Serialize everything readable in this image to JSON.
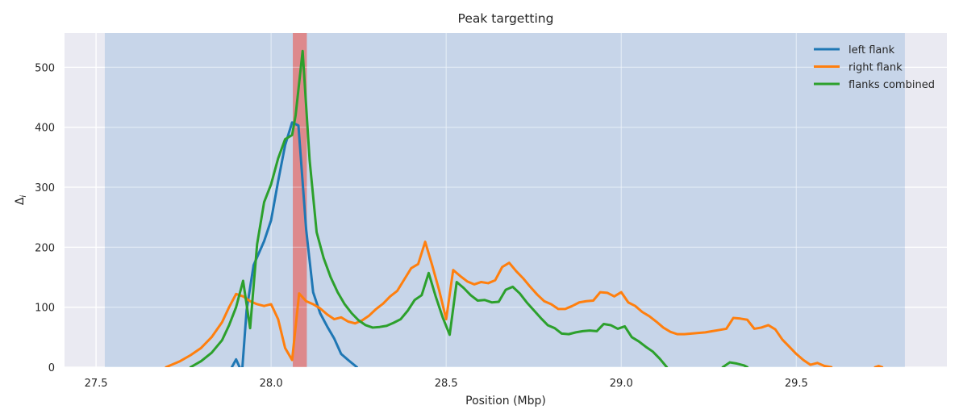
{
  "chart_data": {
    "type": "line",
    "title": "Peak targetting",
    "xlabel": "Position (Mbp)",
    "ylabel": "Δ",
    "ylabel_sub": "i",
    "xlim": [
      27.41,
      29.93
    ],
    "ylim": [
      0,
      557
    ],
    "x_ticks": [
      27.5,
      28.0,
      28.5,
      29.0,
      29.5
    ],
    "x_tick_labels": [
      "27.5",
      "28.0",
      "28.5",
      "29.0",
      "29.5"
    ],
    "y_ticks": [
      0,
      100,
      200,
      300,
      400,
      500
    ],
    "y_tick_labels": [
      "0",
      "100",
      "200",
      "300",
      "400",
      "500"
    ],
    "grid": true,
    "legend_position": "top-right",
    "colors": {
      "background": "#eaeaf2",
      "grid": "#ffffff",
      "blue_span": "#a9c3e2",
      "red_span": "#e07b7b",
      "left_flank": "#1f77b4",
      "right_flank": "#ff7f0e",
      "flanks_combined": "#2ca02c"
    },
    "spans": [
      {
        "name": "search-region",
        "x0": 27.525,
        "x1": 29.81,
        "color_key": "blue_span",
        "opacity": 0.55
      },
      {
        "name": "target-peak",
        "x0": 28.062,
        "x1": 28.102,
        "color_key": "red_span",
        "opacity": 0.85
      }
    ],
    "series": [
      {
        "name": "left flank",
        "color_key": "left_flank",
        "segments": [
          [
            [
              27.888,
              0
            ],
            [
              27.9,
              13
            ],
            [
              27.91,
              0
            ]
          ],
          [
            [
              27.918,
              0
            ],
            [
              27.93,
              95
            ],
            [
              27.95,
              170
            ],
            [
              27.98,
              210
            ],
            [
              28.0,
              245
            ],
            [
              28.02,
              310
            ],
            [
              28.04,
              370
            ],
            [
              28.06,
              408
            ],
            [
              28.078,
              403
            ],
            [
              28.1,
              230
            ],
            [
              28.12,
              125
            ],
            [
              28.14,
              90
            ],
            [
              28.16,
              68
            ],
            [
              28.18,
              48
            ],
            [
              28.2,
              22
            ],
            [
              28.22,
              12
            ],
            [
              28.245,
              0
            ]
          ]
        ]
      },
      {
        "name": "right flank",
        "color_key": "right_flank",
        "segments": [
          [
            [
              27.7,
              0
            ],
            [
              27.74,
              10
            ],
            [
              27.77,
              20
            ],
            [
              27.8,
              32
            ],
            [
              27.83,
              50
            ],
            [
              27.86,
              75
            ],
            [
              27.88,
              100
            ],
            [
              27.9,
              122
            ],
            [
              27.92,
              118
            ],
            [
              27.94,
              110
            ],
            [
              27.96,
              105
            ],
            [
              27.98,
              102
            ],
            [
              28.0,
              105
            ],
            [
              28.02,
              80
            ],
            [
              28.04,
              32
            ],
            [
              28.06,
              12
            ],
            [
              28.08,
              123
            ],
            [
              28.1,
              110
            ],
            [
              28.12,
              105
            ],
            [
              28.14,
              98
            ],
            [
              28.16,
              88
            ],
            [
              28.18,
              80
            ],
            [
              28.2,
              83
            ],
            [
              28.22,
              76
            ],
            [
              28.24,
              73
            ],
            [
              28.26,
              78
            ],
            [
              28.28,
              86
            ],
            [
              28.3,
              97
            ],
            [
              28.32,
              106
            ],
            [
              28.34,
              118
            ],
            [
              28.36,
              127
            ],
            [
              28.38,
              146
            ],
            [
              28.4,
              165
            ],
            [
              28.42,
              172
            ],
            [
              28.44,
              209
            ],
            [
              28.46,
              170
            ],
            [
              28.48,
              128
            ],
            [
              28.5,
              80
            ],
            [
              28.52,
              162
            ],
            [
              28.54,
              152
            ],
            [
              28.56,
              143
            ],
            [
              28.58,
              138
            ],
            [
              28.6,
              142
            ],
            [
              28.62,
              140
            ],
            [
              28.64,
              145
            ],
            [
              28.66,
              167
            ],
            [
              28.68,
              174
            ],
            [
              28.7,
              160
            ],
            [
              28.72,
              148
            ],
            [
              28.74,
              134
            ],
            [
              28.76,
              121
            ],
            [
              28.78,
              110
            ],
            [
              28.8,
              105
            ],
            [
              28.82,
              97
            ],
            [
              28.84,
              97
            ],
            [
              28.86,
              102
            ],
            [
              28.88,
              108
            ],
            [
              28.9,
              110
            ],
            [
              28.92,
              111
            ],
            [
              28.94,
              125
            ],
            [
              28.96,
              124
            ],
            [
              28.98,
              118
            ],
            [
              29.0,
              125
            ],
            [
              29.02,
              108
            ],
            [
              29.04,
              102
            ],
            [
              29.06,
              92
            ],
            [
              29.08,
              85
            ],
            [
              29.1,
              76
            ],
            [
              29.12,
              66
            ],
            [
              29.14,
              59
            ],
            [
              29.16,
              55
            ],
            [
              29.18,
              55
            ],
            [
              29.2,
              56
            ],
            [
              29.22,
              57
            ],
            [
              29.24,
              58
            ],
            [
              29.26,
              60
            ],
            [
              29.28,
              62
            ],
            [
              29.3,
              64
            ],
            [
              29.32,
              82
            ],
            [
              29.34,
              81
            ],
            [
              29.36,
              79
            ],
            [
              29.38,
              64
            ],
            [
              29.4,
              66
            ],
            [
              29.42,
              70
            ],
            [
              29.44,
              63
            ],
            [
              29.46,
              46
            ],
            [
              29.48,
              34
            ],
            [
              29.5,
              22
            ],
            [
              29.52,
              12
            ],
            [
              29.54,
              4
            ],
            [
              29.56,
              7
            ],
            [
              29.58,
              2
            ],
            [
              29.6,
              0
            ]
          ],
          [
            [
              29.725,
              0
            ],
            [
              29.735,
              2
            ],
            [
              29.745,
              0
            ]
          ]
        ]
      },
      {
        "name": "flanks combined",
        "color_key": "flanks_combined",
        "segments": [
          [
            [
              27.77,
              0
            ],
            [
              27.8,
              10
            ],
            [
              27.83,
              24
            ],
            [
              27.86,
              45
            ],
            [
              27.88,
              70
            ],
            [
              27.9,
              100
            ],
            [
              27.92,
              144
            ],
            [
              27.94,
              65
            ],
            [
              27.96,
              205
            ],
            [
              27.98,
              275
            ],
            [
              28.0,
              305
            ],
            [
              28.02,
              348
            ],
            [
              28.04,
              380
            ],
            [
              28.06,
              387
            ],
            [
              28.07,
              420
            ],
            [
              28.09,
              527
            ],
            [
              28.11,
              345
            ],
            [
              28.13,
              225
            ],
            [
              28.15,
              182
            ],
            [
              28.17,
              150
            ],
            [
              28.19,
              125
            ],
            [
              28.21,
              105
            ],
            [
              28.23,
              90
            ],
            [
              28.25,
              78
            ],
            [
              28.27,
              70
            ],
            [
              28.29,
              66
            ],
            [
              28.31,
              67
            ],
            [
              28.33,
              69
            ],
            [
              28.35,
              74
            ],
            [
              28.37,
              80
            ],
            [
              28.39,
              94
            ],
            [
              28.41,
              112
            ],
            [
              28.43,
              120
            ],
            [
              28.45,
              157
            ],
            [
              28.47,
              118
            ],
            [
              28.49,
              83
            ],
            [
              28.51,
              54
            ],
            [
              28.53,
              142
            ],
            [
              28.55,
              132
            ],
            [
              28.57,
              120
            ],
            [
              28.59,
              111
            ],
            [
              28.61,
              112
            ],
            [
              28.63,
              108
            ],
            [
              28.65,
              109
            ],
            [
              28.67,
              129
            ],
            [
              28.69,
              134
            ],
            [
              28.71,
              123
            ],
            [
              28.73,
              108
            ],
            [
              28.75,
              95
            ],
            [
              28.77,
              82
            ],
            [
              28.79,
              70
            ],
            [
              28.81,
              65
            ],
            [
              28.83,
              56
            ],
            [
              28.85,
              55
            ],
            [
              28.87,
              58
            ],
            [
              28.89,
              60
            ],
            [
              28.91,
              61
            ],
            [
              28.93,
              60
            ],
            [
              28.95,
              72
            ],
            [
              28.97,
              70
            ],
            [
              28.99,
              64
            ],
            [
              29.01,
              68
            ],
            [
              29.03,
              50
            ],
            [
              29.05,
              43
            ],
            [
              29.07,
              34
            ],
            [
              29.09,
              26
            ],
            [
              29.11,
              14
            ],
            [
              29.13,
              0
            ]
          ],
          [
            [
              29.29,
              0
            ],
            [
              29.31,
              8
            ],
            [
              29.33,
              6
            ],
            [
              29.35,
              3
            ],
            [
              29.36,
              0
            ]
          ]
        ]
      }
    ]
  }
}
